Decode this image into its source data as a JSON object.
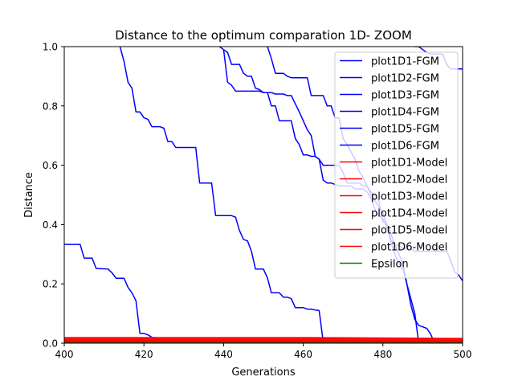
{
  "chart_data": {
    "type": "line",
    "title": "Distance to the optimum comparation 1D- ZOOM",
    "xlabel": "Generations",
    "ylabel": "Distance",
    "xlim": [
      400,
      500
    ],
    "ylim": [
      0,
      1
    ],
    "xticks": [
      "400",
      "420",
      "440",
      "460",
      "480",
      "500"
    ],
    "yticks": [
      "0.0",
      "0.2",
      "0.4",
      "0.6",
      "0.8",
      "1.0"
    ],
    "grid": false,
    "legend_position": "upper-right",
    "series": [
      {
        "name": "plot1D1-FGM",
        "color": "#0000ff",
        "x": [
          400,
          404,
          405,
          407,
          408,
          411,
          412,
          413,
          415,
          416,
          417,
          418,
          419,
          420,
          421,
          422,
          425,
          426,
          500
        ],
        "y": [
          0.333,
          0.333,
          0.287,
          0.287,
          0.252,
          0.25,
          0.237,
          0.219,
          0.219,
          0.188,
          0.17,
          0.143,
          0.033,
          0.033,
          0.028,
          0.02,
          0.005,
          0.0,
          0.0
        ]
      },
      {
        "name": "plot1D2-FGM",
        "color": "#0000ff",
        "x": [
          414,
          415,
          416,
          417,
          418,
          419,
          420,
          421,
          422,
          424,
          425,
          426,
          427,
          428,
          429,
          430,
          433,
          434,
          435,
          437,
          438,
          439,
          440,
          441,
          442,
          443,
          444,
          445,
          446,
          447,
          448,
          449,
          450,
          451,
          452,
          453,
          454,
          455,
          456,
          457,
          458,
          459,
          460,
          461,
          462,
          463,
          464,
          465,
          500
        ],
        "y": [
          1.0,
          0.95,
          0.88,
          0.86,
          0.78,
          0.78,
          0.76,
          0.755,
          0.73,
          0.73,
          0.725,
          0.68,
          0.68,
          0.66,
          0.66,
          0.66,
          0.66,
          0.54,
          0.54,
          0.54,
          0.43,
          0.43,
          0.43,
          0.43,
          0.43,
          0.425,
          0.38,
          0.35,
          0.345,
          0.31,
          0.25,
          0.25,
          0.25,
          0.22,
          0.17,
          0.17,
          0.17,
          0.155,
          0.155,
          0.15,
          0.12,
          0.12,
          0.12,
          0.115,
          0.115,
          0.112,
          0.11,
          0.005,
          0.005
        ]
      },
      {
        "name": "plot1D3-FGM",
        "color": "#0000ff",
        "x": [
          439,
          440,
          441,
          442,
          443,
          444,
          445,
          446,
          447,
          448,
          449,
          450,
          451,
          452,
          453,
          454,
          455,
          456,
          457,
          459,
          460,
          461,
          462,
          463,
          464,
          465,
          466,
          467,
          468,
          469,
          470,
          471,
          472,
          473,
          474,
          475,
          476,
          477,
          478,
          479,
          480,
          481,
          482,
          483,
          484,
          485,
          486,
          487,
          488,
          489,
          490,
          491,
          492,
          493
        ],
        "y": [
          1.0,
          0.99,
          0.88,
          0.87,
          0.85,
          0.85,
          0.85,
          0.85,
          0.85,
          0.85,
          0.85,
          0.845,
          0.845,
          0.845,
          0.84,
          0.84,
          0.84,
          0.835,
          0.835,
          0.78,
          0.75,
          0.72,
          0.7,
          0.63,
          0.62,
          0.6,
          0.6,
          0.6,
          0.6,
          0.6,
          0.575,
          0.54,
          0.54,
          0.54,
          0.54,
          0.53,
          0.53,
          0.51,
          0.5,
          0.48,
          0.41,
          0.4,
          0.35,
          0.33,
          0.3,
          0.27,
          0.2,
          0.13,
          0.08,
          0.06,
          0.055,
          0.05,
          0.03,
          0.0
        ]
      },
      {
        "name": "plot1D4-FGM",
        "color": "#0000ff",
        "x": [
          440,
          441,
          442,
          443,
          444,
          445,
          446,
          447,
          448,
          449,
          450,
          451,
          452,
          453,
          454,
          455,
          456,
          457,
          458,
          459,
          460,
          461,
          462,
          463,
          464,
          465,
          466,
          467,
          468,
          469,
          470,
          471,
          472,
          473,
          474,
          475,
          476,
          477,
          478,
          479,
          480,
          481,
          482,
          483,
          484,
          485,
          486,
          487,
          488,
          489
        ],
        "y": [
          0.99,
          0.98,
          0.94,
          0.94,
          0.94,
          0.91,
          0.9,
          0.9,
          0.86,
          0.855,
          0.845,
          0.845,
          0.8,
          0.8,
          0.75,
          0.75,
          0.75,
          0.75,
          0.69,
          0.67,
          0.635,
          0.635,
          0.63,
          0.63,
          0.62,
          0.55,
          0.54,
          0.54,
          0.535,
          0.53,
          0.53,
          0.53,
          0.53,
          0.52,
          0.52,
          0.52,
          0.51,
          0.49,
          0.45,
          0.43,
          0.42,
          0.39,
          0.34,
          0.3,
          0.27,
          0.25,
          0.2,
          0.15,
          0.1,
          0.0
        ]
      },
      {
        "name": "plot1D5-FGM",
        "color": "#0000ff",
        "x": [
          451,
          452,
          453,
          454,
          455,
          456,
          457,
          458,
          459,
          460,
          461,
          462,
          463,
          464,
          465,
          466,
          467,
          468,
          469,
          470,
          471,
          472,
          473,
          474,
          475,
          476,
          477,
          478,
          479,
          480,
          481,
          482,
          483,
          484,
          485,
          486,
          487,
          488,
          489,
          490,
          491,
          492,
          493,
          494,
          495,
          496,
          497,
          498,
          499,
          500
        ],
        "y": [
          1.0,
          0.96,
          0.91,
          0.91,
          0.91,
          0.9,
          0.895,
          0.895,
          0.895,
          0.895,
          0.895,
          0.835,
          0.835,
          0.835,
          0.835,
          0.8,
          0.8,
          0.76,
          0.76,
          0.69,
          0.67,
          0.645,
          0.62,
          0.58,
          0.56,
          0.53,
          0.5,
          0.48,
          0.46,
          0.44,
          0.4,
          0.37,
          0.33,
          0.33,
          0.32,
          0.32,
          0.32,
          0.31,
          0.31,
          0.31,
          0.31,
          0.31,
          0.31,
          0.31,
          0.31,
          0.31,
          0.28,
          0.24,
          0.23,
          0.21
        ]
      },
      {
        "name": "plot1D6-FGM",
        "color": "#0000ff",
        "x": [
          488,
          489,
          490,
          491,
          492,
          493,
          494,
          495,
          496,
          497,
          498,
          499,
          500
        ],
        "y": [
          1.0,
          1.0,
          0.99,
          0.98,
          0.975,
          0.975,
          0.975,
          0.975,
          0.94,
          0.925,
          0.925,
          0.925,
          0.925
        ]
      },
      {
        "name": "plot1D1-Model",
        "color": "#ff0000",
        "x": [
          400,
          500
        ],
        "y": [
          0.015,
          0.015
        ]
      },
      {
        "name": "plot1D2-Model",
        "color": "#ff0000",
        "x": [
          400,
          461,
          500
        ],
        "y": [
          0.019,
          0.019,
          0.016
        ]
      },
      {
        "name": "plot1D3-Model",
        "color": "#ff0000",
        "x": [
          400,
          500
        ],
        "y": [
          0.011,
          0.011
        ]
      },
      {
        "name": "plot1D4-Model",
        "color": "#ff0000",
        "x": [
          400,
          500
        ],
        "y": [
          0.009,
          0.009
        ]
      },
      {
        "name": "plot1D5-Model",
        "color": "#ff0000",
        "x": [
          400,
          500
        ],
        "y": [
          0.006,
          0.006
        ]
      },
      {
        "name": "plot1D6-Model",
        "color": "#ff0000",
        "x": [
          400,
          500
        ],
        "y": [
          0.003,
          0.003
        ]
      },
      {
        "name": "Epsilon",
        "color": "#008000",
        "x": [
          400,
          500
        ],
        "y": [
          0.001,
          0.001
        ]
      }
    ]
  }
}
